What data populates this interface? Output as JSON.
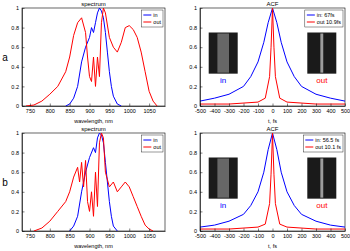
{
  "chart_data": [
    {
      "type": "line",
      "title": "spectrum",
      "panel": "a",
      "xlabel": "wavelength, nm",
      "xlim": [
        730,
        1090
      ],
      "xticks": [
        750,
        800,
        850,
        900,
        950,
        1000,
        1050
      ],
      "ylim": [
        0,
        1
      ],
      "yticks": [
        0,
        0.2,
        0.4,
        0.6,
        0.8,
        1
      ],
      "legend": "upper right",
      "series": [
        {
          "name": "in",
          "color": "#0000ff",
          "x": [
            840,
            850,
            860,
            870,
            880,
            890,
            900,
            905,
            910,
            915,
            920,
            925,
            930,
            935,
            940,
            945,
            950,
            955,
            960,
            970,
            980
          ],
          "values": [
            0,
            0.02,
            0.08,
            0.2,
            0.45,
            0.6,
            0.7,
            0.8,
            0.75,
            0.85,
            0.95,
            1.0,
            0.97,
            0.9,
            0.75,
            0.55,
            0.35,
            0.2,
            0.1,
            0.02,
            0
          ]
        },
        {
          "name": "out",
          "color": "#ff0000",
          "x": [
            740,
            760,
            780,
            800,
            820,
            840,
            850,
            860,
            870,
            880,
            890,
            895,
            900,
            905,
            910,
            915,
            920,
            925,
            930,
            935,
            940,
            950,
            960,
            970,
            980,
            990,
            1000,
            1010,
            1020,
            1030,
            1040,
            1050,
            1060,
            1070
          ],
          "values": [
            0,
            0.01,
            0.05,
            0.12,
            0.2,
            0.35,
            0.5,
            0.72,
            0.85,
            0.9,
            0.75,
            0.5,
            0.3,
            0.25,
            0.5,
            0.2,
            0.5,
            0.3,
            0.85,
            1.0,
            0.95,
            0.7,
            0.6,
            0.55,
            0.65,
            0.8,
            0.82,
            0.78,
            0.7,
            0.55,
            0.35,
            0.15,
            0.05,
            0
          ]
        }
      ]
    },
    {
      "type": "line",
      "title": "ACF",
      "xlabel": "t, fs",
      "xlim": [
        -500,
        500
      ],
      "xticks": [
        -500,
        -400,
        -300,
        -200,
        -100,
        0,
        100,
        200,
        300,
        400,
        500
      ],
      "ylim": [
        0,
        1
      ],
      "yticks": [
        0,
        0.2,
        0.4,
        0.6,
        0.8,
        1
      ],
      "legend": "upper right",
      "annotations": [
        "in",
        "out"
      ],
      "series": [
        {
          "name": "in: 67fs",
          "color": "#0000ff",
          "x": [
            -500,
            -400,
            -300,
            -200,
            -150,
            -100,
            -60,
            -30,
            0,
            30,
            60,
            100,
            150,
            200,
            300,
            400,
            500
          ],
          "values": [
            0.05,
            0.08,
            0.12,
            0.2,
            0.3,
            0.45,
            0.65,
            0.85,
            1,
            0.85,
            0.65,
            0.45,
            0.3,
            0.2,
            0.12,
            0.08,
            0.05
          ]
        },
        {
          "name": "out 10.9fs",
          "color": "#ff0000",
          "x": [
            -500,
            -300,
            -100,
            -50,
            -20,
            -10,
            0,
            10,
            20,
            50,
            100,
            300,
            500
          ],
          "values": [
            0.02,
            0.02,
            0.04,
            0.08,
            0.3,
            0.6,
            1,
            0.6,
            0.3,
            0.08,
            0.04,
            0.02,
            0.02
          ]
        }
      ]
    },
    {
      "type": "line",
      "title": "spectrum",
      "panel": "b",
      "xlabel": "wavelength, nm",
      "xlim": [
        730,
        1090
      ],
      "xticks": [
        750,
        800,
        850,
        900,
        950,
        1000,
        1050
      ],
      "ylim": [
        0,
        1
      ],
      "yticks": [
        0,
        0.2,
        0.4,
        0.6,
        0.8,
        1
      ],
      "legend": "upper right",
      "series": [
        {
          "name": "in",
          "color": "#0000ff",
          "x": [
            850,
            860,
            870,
            880,
            890,
            900,
            910,
            915,
            920,
            925,
            930,
            935,
            940,
            945,
            950,
            955,
            960,
            970
          ],
          "values": [
            0,
            0.05,
            0.15,
            0.4,
            0.6,
            0.75,
            0.85,
            0.8,
            0.95,
            1.0,
            0.98,
            0.9,
            0.7,
            0.5,
            0.3,
            0.15,
            0.05,
            0
          ]
        },
        {
          "name": "out",
          "color": "#ff0000",
          "x": [
            760,
            780,
            800,
            820,
            840,
            850,
            860,
            870,
            875,
            880,
            885,
            890,
            895,
            900,
            905,
            910,
            915,
            920,
            925,
            930,
            935,
            940,
            950,
            960,
            970,
            980,
            990,
            1000,
            1010,
            1020,
            1030,
            1040,
            1050,
            1060
          ],
          "values": [
            0,
            0.03,
            0.1,
            0.2,
            0.3,
            0.4,
            0.55,
            0.65,
            0.5,
            0.7,
            0.45,
            0.72,
            0.3,
            0.2,
            0.4,
            0.15,
            0.6,
            0.25,
            0.9,
            1.0,
            0.95,
            0.6,
            0.45,
            0.5,
            0.4,
            0.45,
            0.5,
            0.45,
            0.35,
            0.25,
            0.15,
            0.06,
            0.02,
            0
          ]
        }
      ]
    },
    {
      "type": "line",
      "title": "ACF",
      "xlabel": "t, fs",
      "xlim": [
        -500,
        500
      ],
      "xticks": [
        -500,
        -400,
        -300,
        -200,
        -100,
        0,
        100,
        200,
        300,
        400,
        500
      ],
      "ylim": [
        0,
        1
      ],
      "yticks": [
        0,
        0.2,
        0.4,
        0.6,
        0.8,
        1
      ],
      "legend": "upper right",
      "annotations": [
        "in",
        "out"
      ],
      "series": [
        {
          "name": "in: 56.5 fs",
          "color": "#0000ff",
          "x": [
            -500,
            -400,
            -300,
            -200,
            -150,
            -100,
            -60,
            -30,
            0,
            30,
            60,
            100,
            150,
            200,
            300,
            400,
            500
          ],
          "values": [
            0.04,
            0.06,
            0.1,
            0.17,
            0.26,
            0.4,
            0.6,
            0.83,
            1,
            0.83,
            0.6,
            0.4,
            0.26,
            0.17,
            0.1,
            0.06,
            0.04
          ]
        },
        {
          "name": "out 10.1 fs",
          "color": "#ff0000",
          "x": [
            -500,
            -300,
            -100,
            -50,
            -20,
            -10,
            0,
            10,
            20,
            50,
            100,
            300,
            500
          ],
          "values": [
            0.02,
            0.02,
            0.04,
            0.07,
            0.28,
            0.58,
            1,
            0.58,
            0.28,
            0.07,
            0.04,
            0.02,
            0.02
          ]
        }
      ]
    }
  ]
}
